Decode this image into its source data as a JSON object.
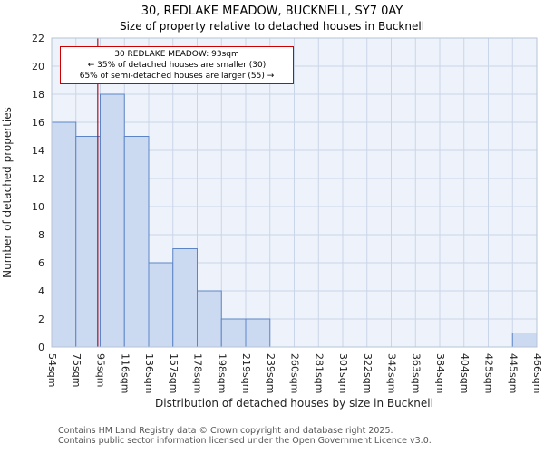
{
  "chart_data": {
    "type": "bar",
    "title": "30, REDLAKE MEADOW, BUCKNELL, SY7 0AY",
    "subtitle": "Size of property relative to detached houses in Bucknell",
    "xlabel": "Distribution of detached houses by size in Bucknell",
    "ylabel": "Number of detached properties",
    "bin_edges_sqm": [
      54,
      75,
      95,
      116,
      136,
      157,
      178,
      198,
      219,
      239,
      260,
      281,
      301,
      322,
      342,
      363,
      384,
      404,
      425,
      445,
      466
    ],
    "tick_labels": [
      "54sqm",
      "75sqm",
      "95sqm",
      "116sqm",
      "136sqm",
      "157sqm",
      "178sqm",
      "198sqm",
      "219sqm",
      "239sqm",
      "260sqm",
      "281sqm",
      "301sqm",
      "322sqm",
      "342sqm",
      "363sqm",
      "384sqm",
      "404sqm",
      "425sqm",
      "445sqm",
      "466sqm"
    ],
    "values": [
      16,
      15,
      18,
      15,
      6,
      7,
      4,
      2,
      2,
      0,
      0,
      0,
      0,
      0,
      0,
      0,
      0,
      0,
      0,
      1
    ],
    "ylim": [
      0,
      22
    ],
    "ytick_step": 2,
    "grid": true,
    "legend": "none",
    "marker": {
      "value_sqm": 93,
      "label": "30 REDLAKE MEADOW: 93sqm"
    },
    "annotation_lines": [
      "30 REDLAKE MEADOW: 93sqm",
      "← 35% of detached houses are smaller (30)",
      "65% of semi-detached houses are larger (55) →"
    ],
    "colors": {
      "bar_fill": "#ccdaf1",
      "bar_border": "#5c85c7",
      "marker_line": "#aa1122",
      "annotation_border": "#cc0000",
      "grid": "#c9d5e8",
      "plot_bg": "#eef3fb",
      "spine": "#b7c3d6"
    }
  },
  "footer": {
    "line1": "Contains HM Land Registry data © Crown copyright and database right 2025.",
    "line2": "Contains public sector information licensed under the Open Government Licence v3.0."
  }
}
